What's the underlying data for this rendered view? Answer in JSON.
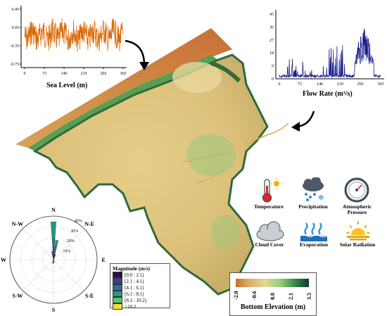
{
  "sea_level_chart": {
    "xlabel": "Sea Level (m)",
    "yticks": [
      "0.45",
      "0.05",
      "-0.35",
      "-0.75"
    ],
    "xticks": [
      "0",
      "73",
      "146",
      "219",
      "292",
      "365"
    ],
    "color": "#d96a0a"
  },
  "flow_rate_chart": {
    "xlabel": "Flow Rate (m³/s)",
    "yticks": [
      "45",
      "36",
      "27",
      "18",
      "9",
      "0"
    ],
    "xticks": [
      "0",
      "73",
      "146",
      "219",
      "292",
      "365"
    ],
    "color": "#1a1a8c"
  },
  "wind_rose": {
    "directions": [
      "N",
      "N-E",
      "E",
      "S-E",
      "S",
      "S-W",
      "W",
      "N-W"
    ],
    "rings": [
      "10%",
      "20%",
      "30%",
      "40%"
    ]
  },
  "magnitude_legend": {
    "title": "Magnitude (m/s)",
    "items": [
      {
        "label": "[0.0 : 2.1)",
        "color": "#2a0f45"
      },
      {
        "label": "[2.1 : 4.1)",
        "color": "#3d3f8a"
      },
      {
        "label": "[4.1 : 6.1)",
        "color": "#2f6f92"
      },
      {
        "label": "[6.1 : 8.1)",
        "color": "#23998a"
      },
      {
        "label": "[8.1 : 10.2)",
        "color": "#5dc462"
      },
      {
        "label": ">10.2",
        "color": "#f2e02a"
      }
    ]
  },
  "weather_icons": [
    {
      "name": "temperature",
      "label": "Temperature"
    },
    {
      "name": "precipitation",
      "label": "Precipitation"
    },
    {
      "name": "atmospheric-pressure",
      "label": "Atmospheric Pressure"
    },
    {
      "name": "cloud-cover",
      "label": "Cloud Cover"
    },
    {
      "name": "evaporation",
      "label": "Evaporation"
    },
    {
      "name": "solar-radiation",
      "label": "Solar Radiation"
    }
  ],
  "elevation_legend": {
    "title": "Bottom Elevation (m)",
    "ticks": [
      "-2.0",
      "-0.6",
      "0.8",
      "2.1",
      "3.5"
    ],
    "colors": [
      "#c8702e",
      "#d8b56e",
      "#e3d693",
      "#9ccf7a",
      "#3e8a4e",
      "#0d3b25"
    ]
  }
}
